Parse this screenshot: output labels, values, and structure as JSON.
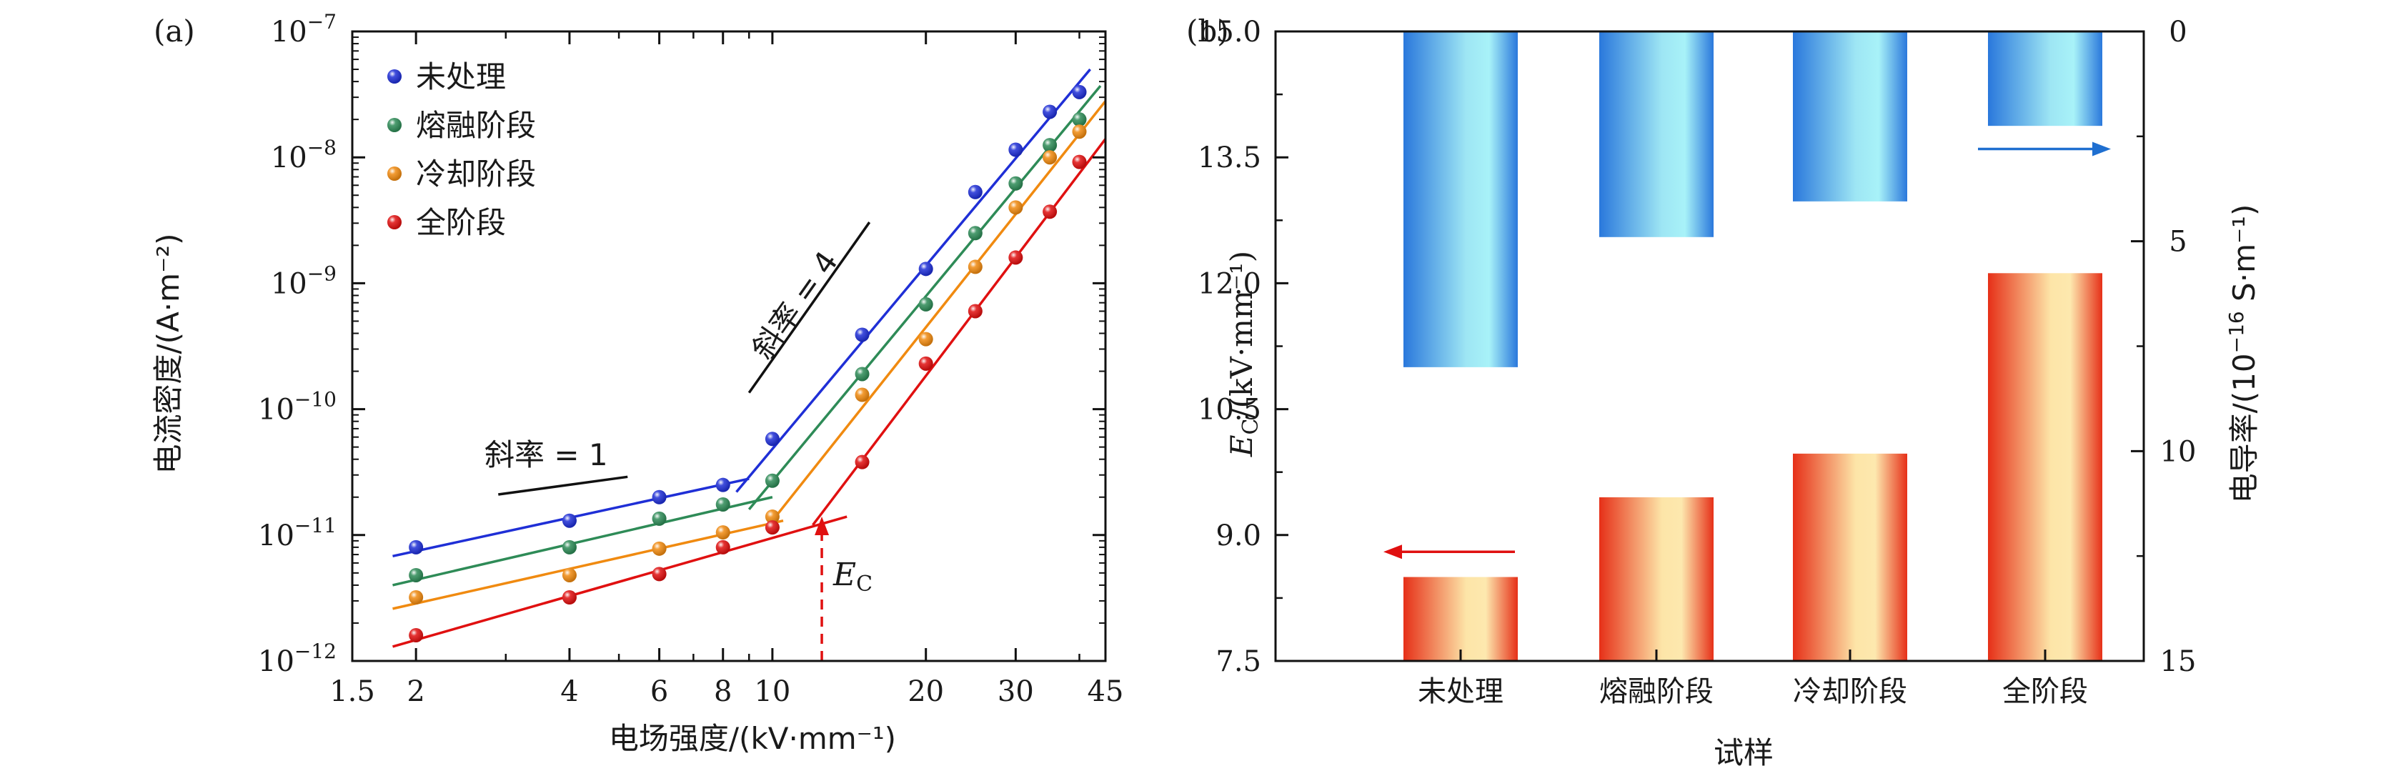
{
  "chart_data": [
    {
      "panel": "(a)",
      "type": "scatter",
      "x_scale": "log",
      "y_scale": "log",
      "xlabel": "电场强度/(kV·mm⁻¹)",
      "ylabel": "电流密度/(A·m⁻²)",
      "xlim": [
        1.5,
        45
      ],
      "ylim": [
        1e-12,
        1e-07
      ],
      "x_ticks": [
        1.5,
        2,
        4,
        6,
        8,
        10,
        20,
        30,
        45
      ],
      "x_tick_labels": [
        "1.5",
        "2",
        "4",
        "6",
        "8",
        "10",
        "20",
        "30",
        "45"
      ],
      "y_ticks": [
        1e-12,
        1e-11,
        1e-10,
        1e-09,
        1e-08,
        1e-07
      ],
      "y_tick_labels": [
        {
          "base": "10",
          "exp": "−12"
        },
        {
          "base": "10",
          "exp": "−11"
        },
        {
          "base": "10",
          "exp": "−10"
        },
        {
          "base": "10",
          "exp": "−9"
        },
        {
          "base": "10",
          "exp": "−8"
        },
        {
          "base": "10",
          "exp": "−7"
        }
      ],
      "x": [
        2,
        4,
        6,
        8,
        10,
        15,
        20,
        25,
        30,
        35,
        40
      ],
      "series": [
        {
          "name": "未处理",
          "color": "#1f2fd6",
          "values": [
            8e-12,
            1.3e-11,
            2e-11,
            2.5e-11,
            5.8e-11,
            3.9e-10,
            1.3e-09,
            5.3e-09,
            1.15e-08,
            2.3e-08,
            3.3e-08
          ],
          "fit_low": [
            [
              1.8,
              6.8e-12
            ],
            [
              9.0,
              2.8e-11
            ]
          ],
          "fit_high": [
            [
              8.5,
              2.2e-11
            ],
            [
              42,
              5e-08
            ]
          ]
        },
        {
          "name": "熔融阶段",
          "color": "#2e8b57",
          "values": [
            4.8e-12,
            8e-12,
            1.35e-11,
            1.75e-11,
            2.7e-11,
            1.9e-10,
            6.8e-10,
            2.5e-09,
            6.2e-09,
            1.25e-08,
            2e-08
          ],
          "fit_low": [
            [
              1.8,
              4e-12
            ],
            [
              10,
              2e-11
            ]
          ],
          "fit_high": [
            [
              9.0,
              1.6e-11
            ],
            [
              44,
              3.7e-08
            ]
          ]
        },
        {
          "name": "冷却阶段",
          "color": "#f08a10",
          "values": [
            3.2e-12,
            4.8e-12,
            7.8e-12,
            1.05e-11,
            1.4e-11,
            1.3e-10,
            3.6e-10,
            1.35e-09,
            4e-09,
            1e-08,
            1.6e-08
          ],
          "fit_low": [
            [
              1.8,
              2.6e-12
            ],
            [
              10.5,
              1.3e-11
            ]
          ],
          "fit_high": [
            [
              10,
              1.3e-11
            ],
            [
              45,
              2.8e-08
            ]
          ]
        },
        {
          "name": "全阶段",
          "color": "#e01010",
          "values": [
            1.6e-12,
            3.2e-12,
            4.9e-12,
            8e-12,
            1.15e-11,
            3.8e-11,
            2.3e-10,
            6e-10,
            1.6e-09,
            3.7e-09,
            9.2e-09
          ],
          "fit_low": [
            [
              1.8,
              1.3e-12
            ],
            [
              14,
              1.4e-11
            ]
          ],
          "fit_high": [
            [
              12,
              1.2e-11
            ],
            [
              45,
              1.4e-08
            ]
          ]
        }
      ],
      "annotations": [
        {
          "text": "斜率 = 1",
          "x": 3.6,
          "y": 3.6e-11
        },
        {
          "text": "斜率 = 4",
          "x": 11.5,
          "y": 6e-10
        },
        {
          "text": "E_C",
          "x": 12.5,
          "y": 4e-12,
          "color": "#e01010"
        }
      ],
      "slope1_segment": [
        [
          2.9,
          2.1e-11
        ],
        [
          5.2,
          2.9e-11
        ]
      ],
      "slope4_segment": [
        [
          9.0,
          1.35e-10
        ],
        [
          15.5,
          3.05e-09
        ]
      ],
      "ec_arrow": {
        "x": 12.5,
        "from_y": 1e-12,
        "to_y": 1.4e-11,
        "color": "#e01010"
      },
      "legend_position": "top-left"
    },
    {
      "panel": "(b)",
      "type": "bar",
      "categories": [
        "未处理",
        "熔融阶段",
        "冷却阶段",
        "全阶段"
      ],
      "xlabel": "试样",
      "ylabel_left": {
        "main": "E",
        "sub": "C",
        "rest": "/(kV·mm⁻¹)"
      },
      "ylabel_right": {
        "pre": "电导率/(10",
        "exp": "−16",
        "post": " S·m⁻¹)"
      },
      "ylim_left": [
        7.5,
        15.0
      ],
      "yticks_left": [
        7.5,
        9.0,
        10.5,
        12.0,
        13.5,
        15.0
      ],
      "ytick_labels_left": [
        "7.5",
        "9.0",
        "10.5",
        "12.0",
        "13.5",
        "15.0"
      ],
      "ylim_right": [
        15,
        0
      ],
      "yticks_right": [
        0,
        5,
        10,
        15
      ],
      "ytick_labels_right": [
        "0",
        "5",
        "10",
        "15"
      ],
      "series": [
        {
          "name": "E_C",
          "axis": "left",
          "color": "#e83018",
          "values": [
            8.5,
            9.45,
            9.97,
            12.12
          ]
        },
        {
          "name": "电导率",
          "axis": "right",
          "color": "#2a7fe0",
          "values": [
            8.0,
            4.9,
            4.05,
            2.25
          ]
        }
      ],
      "arrows": [
        {
          "series": "E_C",
          "direction": "left",
          "color": "#e01010"
        },
        {
          "series": "电导率",
          "direction": "right",
          "color": "#1f6fd0"
        }
      ]
    }
  ]
}
